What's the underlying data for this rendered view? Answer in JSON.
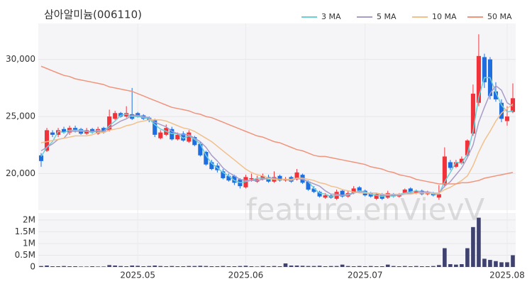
{
  "chart_data": {
    "type": "candlestick",
    "title": "삼아알미늄(006110)",
    "watermark": "feature.enVievV",
    "categories": [
      null,
      null,
      null,
      null,
      null,
      null,
      null,
      null,
      null,
      null,
      null,
      null,
      null,
      null,
      null,
      null,
      null,
      "2025.05",
      null,
      null,
      null,
      null,
      null,
      null,
      null,
      null,
      null,
      null,
      null,
      null,
      null,
      null,
      null,
      null,
      null,
      null,
      "2025.06",
      null,
      null,
      null,
      null,
      null,
      null,
      null,
      null,
      null,
      null,
      null,
      null,
      null,
      null,
      null,
      null,
      null,
      null,
      null,
      null,
      "2025.07",
      null,
      null,
      null,
      null,
      null,
      null,
      null,
      null,
      null,
      null,
      null,
      null,
      null,
      null,
      null,
      null,
      null,
      null,
      null,
      null,
      null,
      null,
      null,
      null,
      "2025.08",
      null
    ],
    "open": [
      21600,
      22000,
      23600,
      23400,
      23900,
      23600,
      24000,
      23900,
      23500,
      23900,
      23500,
      24000,
      23800,
      24800,
      25300,
      25000,
      25200,
      25300,
      25100,
      24900,
      24700,
      23100,
      23400,
      23900,
      23000,
      23500,
      22800,
      23200,
      22600,
      21900,
      21000,
      20700,
      20200,
      19800,
      19800,
      19500,
      18800,
      19500,
      19300,
      19500,
      19700,
      19300,
      19800,
      19400,
      19700,
      19500,
      19900,
      19300,
      18700,
      18400,
      17900,
      18100,
      17800,
      18500,
      18000,
      18300,
      18800,
      18500,
      18300,
      17800,
      18200,
      17900,
      18200,
      18000,
      18300,
      18700,
      18300,
      18500,
      18200,
      18300,
      17900,
      19000,
      21000,
      20600,
      20900,
      21600,
      23500,
      26200,
      30200,
      30000,
      27200,
      26200,
      24600,
      25400
    ],
    "high": [
      21800,
      24000,
      23800,
      24000,
      24100,
      24200,
      24200,
      24000,
      24000,
      24000,
      24100,
      24100,
      25600,
      25500,
      25400,
      25900,
      27500,
      25400,
      25200,
      25000,
      24800,
      23800,
      24300,
      24100,
      23600,
      23700,
      23800,
      23300,
      22800,
      22000,
      21200,
      20900,
      20400,
      20000,
      19900,
      19600,
      19900,
      20000,
      19800,
      20000,
      19900,
      20200,
      19900,
      19700,
      19800,
      20400,
      20000,
      19400,
      18900,
      18500,
      18300,
      18200,
      18600,
      18600,
      18500,
      18900,
      18900,
      18600,
      18400,
      18300,
      18300,
      18500,
      18300,
      18300,
      18700,
      18800,
      18600,
      18600,
      18500,
      18400,
      19000,
      22300,
      21200,
      21200,
      21500,
      23000,
      27800,
      32200,
      30500,
      30200,
      28000,
      26500,
      25900,
      27900
    ],
    "low": [
      20600,
      21900,
      23200,
      23200,
      23500,
      23400,
      23600,
      23400,
      23400,
      23500,
      23400,
      23500,
      23700,
      24700,
      24900,
      24900,
      24700,
      24900,
      24700,
      24500,
      23200,
      23000,
      23300,
      22900,
      22900,
      22800,
      22700,
      22400,
      21500,
      20700,
      20300,
      20100,
      19500,
      19300,
      19000,
      18700,
      18700,
      19300,
      19200,
      19400,
      19200,
      19200,
      19300,
      19300,
      19200,
      19400,
      19100,
      18500,
      18300,
      17900,
      17800,
      17800,
      17700,
      17900,
      17900,
      18200,
      18400,
      18000,
      17900,
      17700,
      17700,
      17800,
      17900,
      17900,
      18200,
      18300,
      18200,
      18100,
      18100,
      18000,
      17700,
      18800,
      20300,
      20500,
      20800,
      21500,
      23300,
      25900,
      27500,
      26500,
      26300,
      24500,
      24200,
      25300
    ],
    "close": [
      21100,
      23800,
      23400,
      23800,
      23600,
      24000,
      23800,
      23500,
      23800,
      23600,
      23900,
      23600,
      25000,
      25300,
      25000,
      25300,
      24800,
      25000,
      24800,
      24700,
      23400,
      23600,
      24000,
      23000,
      23400,
      22900,
      23600,
      22500,
      21600,
      20800,
      20400,
      20300,
      19600,
      19400,
      19200,
      18900,
      19700,
      19600,
      19500,
      19800,
      19300,
      19700,
      19400,
      19500,
      19300,
      20100,
      19200,
      18600,
      18400,
      18000,
      18100,
      17900,
      18400,
      18000,
      18300,
      18700,
      18500,
      18100,
      18000,
      18200,
      17800,
      18300,
      18000,
      18200,
      18600,
      18400,
      18500,
      18200,
      18400,
      18100,
      18200,
      21500,
      20500,
      21000,
      21300,
      22900,
      27000,
      30300,
      28000,
      26800,
      26500,
      24800,
      25000,
      26600
    ],
    "up_color": "#f0323a",
    "down_color": "#1f6ee0",
    "ylim": [
      16800,
      33150
    ],
    "yticks": [
      {
        "value": 20000,
        "label": "20,000"
      },
      {
        "value": 25000,
        "label": "25,000"
      },
      {
        "value": 30000,
        "label": "30,000"
      }
    ],
    "grid": true,
    "legend": "top-right",
    "ma": [
      {
        "name": "3 MA",
        "color": "#6ccfd6",
        "values": [
          21500,
          22300,
          22800,
          23700,
          23600,
          23800,
          23800,
          23800,
          23700,
          23600,
          23800,
          23700,
          24200,
          24600,
          25100,
          25200,
          25000,
          25000,
          24900,
          24800,
          24300,
          23900,
          23700,
          23500,
          23500,
          23100,
          23300,
          23000,
          22600,
          21600,
          20900,
          20500,
          20100,
          19800,
          19400,
          19200,
          19300,
          19400,
          19600,
          19600,
          19500,
          19600,
          19500,
          19500,
          19400,
          19600,
          19500,
          19300,
          18700,
          18300,
          18200,
          18000,
          18100,
          18100,
          18200,
          18300,
          18500,
          18400,
          18200,
          18100,
          18000,
          18100,
          18000,
          18200,
          18300,
          18400,
          18500,
          18400,
          18400,
          18200,
          18200,
          19300,
          20100,
          21000,
          20900,
          21700,
          23700,
          26700,
          28400,
          28400,
          27100,
          26000,
          25400,
          25500
        ]
      },
      {
        "name": "5 MA",
        "color": "#a99cc9",
        "values": [
          22000,
          22300,
          22600,
          23000,
          23100,
          23700,
          23700,
          23700,
          23700,
          23700,
          23700,
          23700,
          24000,
          24300,
          24600,
          24800,
          25100,
          25100,
          25000,
          24900,
          24500,
          24300,
          24100,
          23700,
          23500,
          23400,
          23400,
          23100,
          22800,
          22300,
          21600,
          21100,
          20500,
          20100,
          19800,
          19500,
          19400,
          19400,
          19400,
          19500,
          19600,
          19600,
          19500,
          19500,
          19400,
          19600,
          19500,
          19300,
          19100,
          18900,
          18500,
          18200,
          18200,
          18100,
          18100,
          18300,
          18400,
          18300,
          18300,
          18300,
          18100,
          18100,
          18100,
          18100,
          18200,
          18300,
          18300,
          18400,
          18400,
          18300,
          18300,
          18900,
          19300,
          19900,
          20500,
          21400,
          22500,
          24500,
          25800,
          27000,
          27700,
          27300,
          26200,
          25900
        ]
      },
      {
        "name": "10 MA",
        "color": "#f2c08a",
        "values": [
          22700,
          22800,
          22900,
          23000,
          23100,
          23200,
          23300,
          23300,
          23300,
          23400,
          23600,
          23600,
          23800,
          23900,
          24000,
          24200,
          24300,
          24500,
          24600,
          24700,
          24700,
          24700,
          24600,
          24400,
          24200,
          24000,
          23900,
          23700,
          23400,
          23100,
          22800,
          22400,
          22000,
          21600,
          21200,
          20800,
          20400,
          20100,
          19900,
          19800,
          19600,
          19500,
          19500,
          19500,
          19500,
          19600,
          19600,
          19500,
          19400,
          19200,
          19100,
          18900,
          18800,
          18600,
          18500,
          18400,
          18300,
          18300,
          18300,
          18300,
          18200,
          18200,
          18200,
          18200,
          18200,
          18200,
          18300,
          18300,
          18300,
          18300,
          18300,
          18600,
          18800,
          19100,
          19400,
          19800,
          20700,
          21900,
          22900,
          23700,
          24600,
          25300,
          25700,
          26100
        ]
      },
      {
        "name": "50 MA",
        "color": "#f0947c",
        "values": [
          29400,
          29200,
          29000,
          28800,
          28600,
          28500,
          28300,
          28200,
          28100,
          28000,
          27900,
          27800,
          27600,
          27500,
          27400,
          27300,
          27200,
          27000,
          26800,
          26600,
          26400,
          26200,
          26000,
          25800,
          25700,
          25600,
          25500,
          25300,
          25200,
          25000,
          24900,
          24700,
          24500,
          24300,
          24100,
          23900,
          23700,
          23500,
          23300,
          23200,
          23000,
          22800,
          22700,
          22500,
          22300,
          22100,
          22000,
          21800,
          21600,
          21500,
          21500,
          21400,
          21300,
          21200,
          21100,
          21000,
          20900,
          20800,
          20600,
          20500,
          20400,
          20200,
          20100,
          19900,
          19800,
          19700,
          19500,
          19400,
          19300,
          19200,
          19100,
          19100,
          19100,
          19100,
          19200,
          19200,
          19300,
          19400,
          19600,
          19700,
          19800,
          19900,
          20000,
          20100
        ]
      }
    ],
    "volume": {
      "color": "#3f416e",
      "values": [
        40000,
        60000,
        30000,
        30000,
        40000,
        30000,
        30000,
        20000,
        20000,
        30000,
        20000,
        20000,
        80000,
        60000,
        40000,
        30000,
        60000,
        50000,
        30000,
        40000,
        60000,
        40000,
        30000,
        40000,
        30000,
        30000,
        40000,
        40000,
        50000,
        40000,
        30000,
        30000,
        40000,
        30000,
        30000,
        40000,
        50000,
        30000,
        20000,
        40000,
        30000,
        40000,
        30000,
        150000,
        60000,
        60000,
        50000,
        40000,
        40000,
        50000,
        30000,
        40000,
        40000,
        100000,
        40000,
        30000,
        40000,
        30000,
        40000,
        30000,
        30000,
        100000,
        40000,
        30000,
        40000,
        30000,
        40000,
        30000,
        30000,
        40000,
        80000,
        800000,
        120000,
        100000,
        120000,
        800000,
        1700000,
        2100000,
        350000,
        300000,
        250000,
        200000,
        200000,
        500000
      ],
      "ylim": [
        0,
        2300000
      ],
      "yticks": [
        0,
        {
          "value": 500000,
          "label": "0.5M"
        },
        {
          "value": 1000000,
          "label": "1M"
        },
        {
          "value": 1500000,
          "label": "1.5M"
        },
        {
          "value": 2000000,
          "label": "2M"
        }
      ]
    }
  }
}
